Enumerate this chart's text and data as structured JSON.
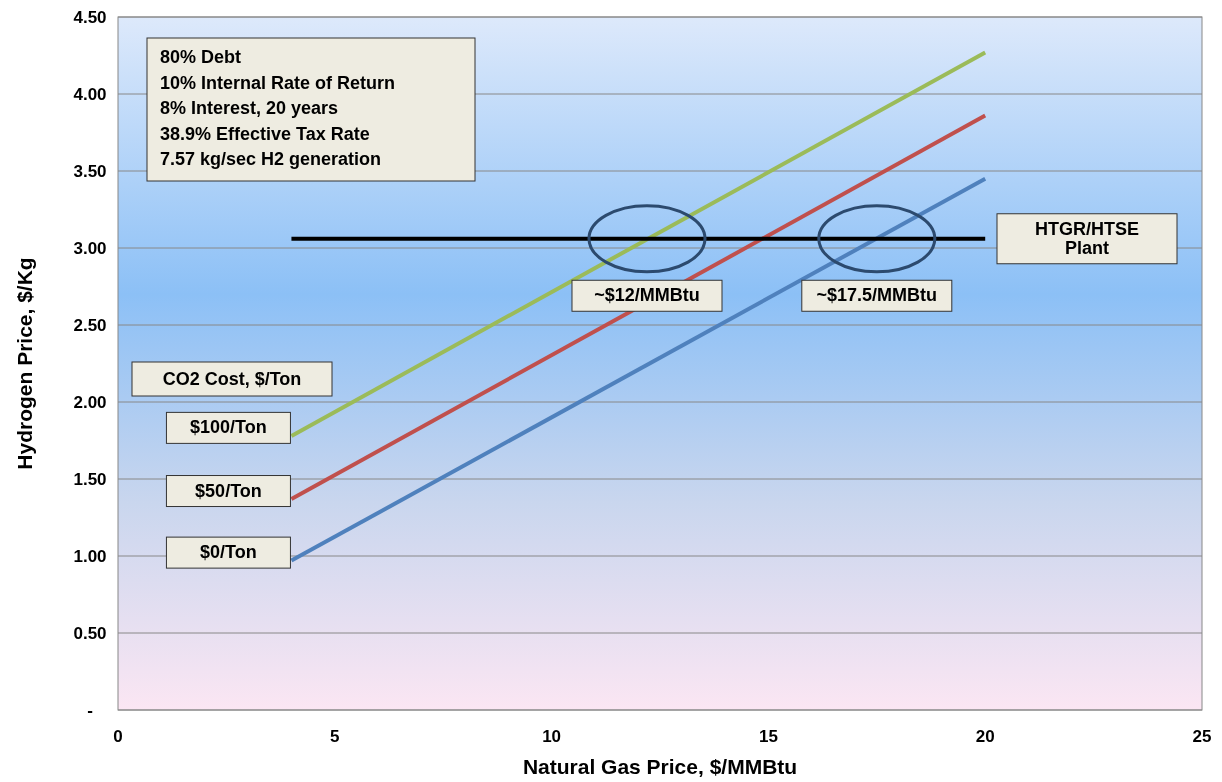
{
  "chart_data": {
    "type": "line",
    "xlabel": "Natural Gas Price, $/MMBtu",
    "ylabel": "Hydrogen Price, $/Kg",
    "xlim": [
      0,
      25
    ],
    "xticks": [
      0,
      5,
      10,
      15,
      20,
      25
    ],
    "ylim": [
      0,
      4.5
    ],
    "yticks": [
      {
        "value": 0,
        "label": "-"
      },
      {
        "value": 0.5,
        "label": "0.50"
      },
      {
        "value": 1,
        "label": "1.00"
      },
      {
        "value": 1.5,
        "label": "1.50"
      },
      {
        "value": 2,
        "label": "2.00"
      },
      {
        "value": 2.5,
        "label": "2.50"
      },
      {
        "value": 3,
        "label": "3.00"
      },
      {
        "value": 3.5,
        "label": "3.50"
      },
      {
        "value": 4,
        "label": "4.00"
      },
      {
        "value": 4.5,
        "label": "4.50"
      }
    ],
    "grid": "y",
    "x": [
      4,
      20
    ],
    "legend_title": "CO2 Cost, $/Ton",
    "series": [
      {
        "name": "$100/Ton",
        "color": "#9bbb59",
        "values": [
          1.78,
          4.27
        ]
      },
      {
        "name": "$50/Ton",
        "color": "#c0504d",
        "values": [
          1.37,
          3.86
        ]
      },
      {
        "name": "$0/Ton",
        "color": "#4f81bd",
        "values": [
          0.97,
          3.45
        ]
      },
      {
        "name": "HTGR/HTSE Plant",
        "color": "#000000",
        "values": [
          3.06,
          3.06
        ]
      }
    ],
    "annotations": [
      "80% Debt",
      "10% Internal Rate of Return",
      "8% Interest, 20 years",
      "38.9% Effective Tax Rate",
      "7.57 kg/sec H2 generation",
      {
        "text": "~$12/MMBtu",
        "x": 12.2,
        "y": 3.06
      },
      {
        "text": "~$17.5/MMBtu",
        "x": 17.5,
        "y": 3.06
      }
    ]
  }
}
